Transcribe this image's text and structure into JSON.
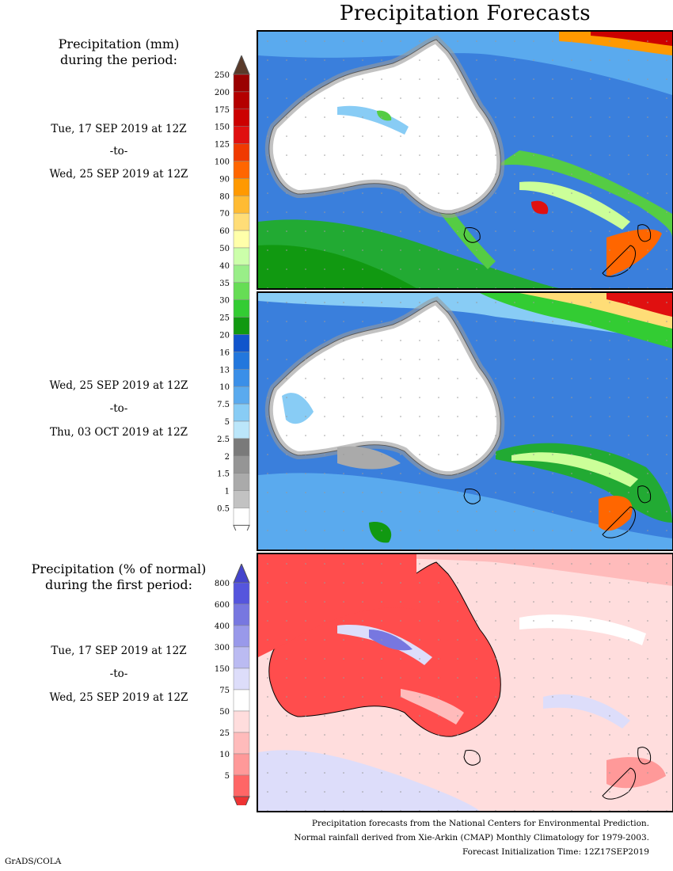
{
  "title": "Precipitation Forecasts",
  "section1": {
    "heading_line1": "Precipitation (mm)",
    "heading_line2": "during the period:"
  },
  "period1": {
    "start": "Tue, 17 SEP 2019 at 12Z",
    "sep": "-to-",
    "end": "Wed, 25 SEP 2019 at 12Z"
  },
  "period2": {
    "start": "Wed, 25 SEP 2019 at 12Z",
    "sep": "-to-",
    "end": "Thu, 03 OCT 2019 at 12Z"
  },
  "section2": {
    "heading_line1": "Precipitation (% of normal)",
    "heading_line2": "during the first period:"
  },
  "period3": {
    "start": "Tue, 17 SEP 2019 at 12Z",
    "sep": "-to-",
    "end": "Wed, 25 SEP 2019 at 12Z"
  },
  "legend_mm": {
    "labels": [
      "250",
      "200",
      "175",
      "150",
      "125",
      "100",
      "90",
      "80",
      "70",
      "60",
      "50",
      "40",
      "35",
      "30",
      "25",
      "20",
      "16",
      "13",
      "10",
      "7.5",
      "5",
      "2.5",
      "2",
      "1.5",
      "1",
      "0.5"
    ],
    "colors": [
      "#9a0000",
      "#b40000",
      "#cc0000",
      "#e01010",
      "#f03a00",
      "#ff6600",
      "#ff9900",
      "#ffbb33",
      "#ffdd77",
      "#ffffaa",
      "#ccffaa",
      "#99ee88",
      "#66dd55",
      "#33cc33",
      "#119911",
      "#1155cc",
      "#2277dd",
      "#3a8fe8",
      "#5aaaee",
      "#88ccf5",
      "#bbe6fa",
      "#7a7a7a",
      "#959595",
      "#aaaaaa",
      "#c2c2c2",
      "#ffffff"
    ],
    "top_arrow_color": "#5a3a2a",
    "bottom_arrow_color": "#ffffff"
  },
  "legend_pct": {
    "labels": [
      "800",
      "600",
      "400",
      "300",
      "150",
      "75",
      "50",
      "25",
      "10",
      "5"
    ],
    "colors": [
      "#5555dd",
      "#7777e0",
      "#9999ea",
      "#bbbbf2",
      "#ddddfa",
      "#ffffff",
      "#ffdddd",
      "#ffbbbb",
      "#ff9999",
      "#ff6666"
    ],
    "top_arrow_color": "#4444cc",
    "bottom_arrow_color": "#ee3333"
  },
  "footer": {
    "line1": "Precipitation forecasts from the National Centers for Environmental Prediction.",
    "line2": "Normal rainfall derived from Xie-Arkin (CMAP) Monthly Climatology for 1979-2003.",
    "line3": "Forecast Initialization Time: 12Z17SEP2019"
  },
  "credit": "GrADS/COLA"
}
